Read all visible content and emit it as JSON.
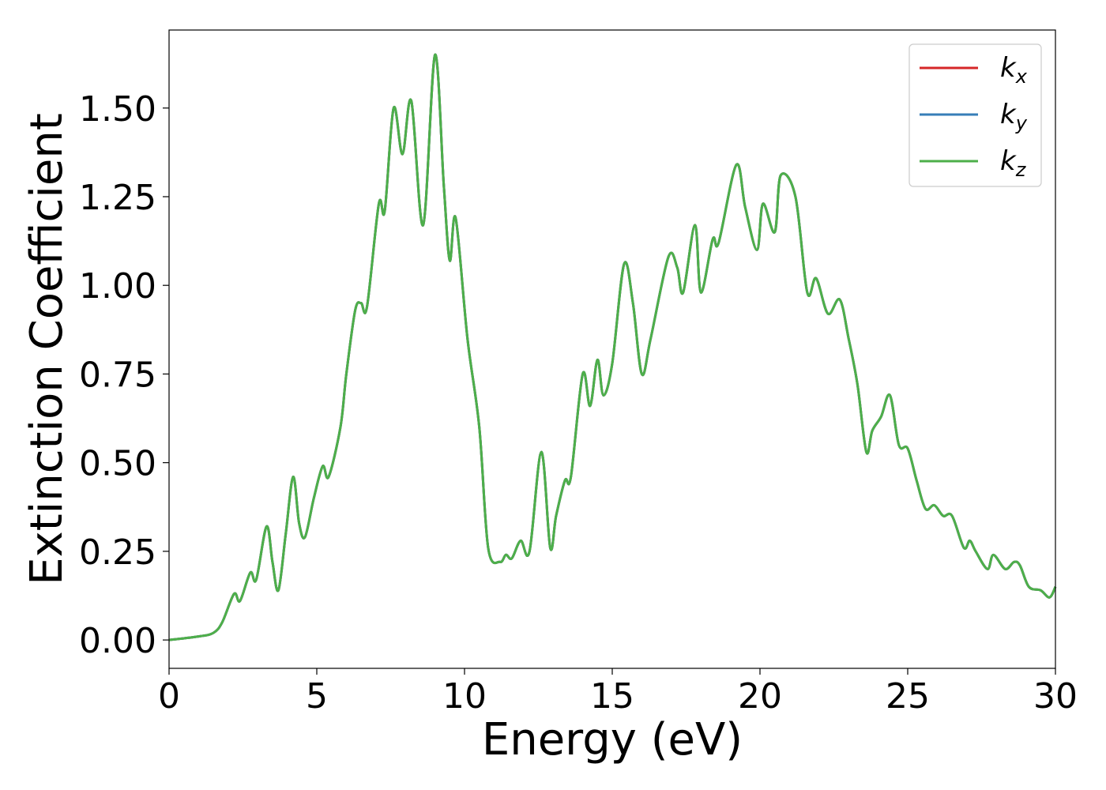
{
  "chart_data": {
    "type": "line",
    "title": "",
    "xlabel": "Energy (eV)",
    "ylabel": "Extinction Coefficient",
    "xlim": [
      0,
      30
    ],
    "ylim": [
      -0.08,
      1.72
    ],
    "xticks": [
      0,
      5,
      10,
      15,
      20,
      25,
      30
    ],
    "xtick_labels": [
      "0",
      "5",
      "10",
      "15",
      "20",
      "25",
      "30"
    ],
    "yticks": [
      0.0,
      0.25,
      0.5,
      0.75,
      1.0,
      1.25,
      1.5
    ],
    "ytick_labels": [
      "0.00",
      "0.25",
      "0.50",
      "0.75",
      "1.00",
      "1.25",
      "1.50"
    ],
    "grid": false,
    "legend_position": "top-right",
    "series": [
      {
        "name": "k_x",
        "legend_base": "k",
        "legend_sub": "x",
        "color": "#d62728",
        "x": [
          0,
          1.0,
          1.5,
          1.8,
          2.2,
          2.4,
          2.75,
          2.95,
          3.3,
          3.5,
          3.7,
          3.95,
          4.2,
          4.4,
          4.6,
          4.9,
          5.2,
          5.4,
          5.8,
          6.0,
          6.3,
          6.5,
          6.7,
          7.1,
          7.3,
          7.6,
          7.9,
          8.2,
          8.6,
          9.0,
          9.3,
          9.5,
          9.7,
          10.1,
          10.5,
          10.8,
          11.2,
          11.4,
          11.6,
          11.9,
          12.2,
          12.6,
          12.9,
          13.1,
          13.4,
          13.6,
          14.0,
          14.25,
          14.5,
          14.7,
          15.0,
          15.4,
          15.7,
          16.0,
          16.3,
          16.9,
          17.2,
          17.4,
          17.8,
          18.0,
          18.4,
          18.6,
          19.2,
          19.5,
          19.9,
          20.1,
          20.5,
          20.7,
          21.2,
          21.6,
          21.9,
          22.3,
          22.7,
          23.0,
          23.3,
          23.6,
          23.8,
          24.1,
          24.4,
          24.7,
          25.0,
          25.3,
          25.6,
          25.9,
          26.2,
          26.5,
          26.9,
          27.1,
          27.3,
          27.7,
          27.9,
          28.3,
          28.6,
          28.8,
          29.1,
          29.5,
          29.8,
          30.0
        ],
        "y": [
          0.0,
          0.01,
          0.02,
          0.05,
          0.13,
          0.11,
          0.19,
          0.17,
          0.32,
          0.22,
          0.14,
          0.3,
          0.46,
          0.33,
          0.29,
          0.4,
          0.49,
          0.46,
          0.6,
          0.75,
          0.93,
          0.95,
          0.94,
          1.23,
          1.21,
          1.5,
          1.37,
          1.52,
          1.17,
          1.65,
          1.28,
          1.07,
          1.19,
          0.85,
          0.6,
          0.26,
          0.22,
          0.24,
          0.23,
          0.28,
          0.25,
          0.53,
          0.26,
          0.35,
          0.45,
          0.46,
          0.75,
          0.66,
          0.79,
          0.69,
          0.78,
          1.06,
          0.95,
          0.75,
          0.85,
          1.08,
          1.05,
          0.98,
          1.17,
          0.98,
          1.13,
          1.12,
          1.34,
          1.22,
          1.1,
          1.23,
          1.15,
          1.31,
          1.25,
          0.98,
          1.02,
          0.92,
          0.96,
          0.85,
          0.72,
          0.53,
          0.59,
          0.63,
          0.69,
          0.55,
          0.54,
          0.45,
          0.37,
          0.38,
          0.35,
          0.35,
          0.26,
          0.28,
          0.25,
          0.2,
          0.24,
          0.2,
          0.22,
          0.21,
          0.15,
          0.14,
          0.12,
          0.15
        ]
      },
      {
        "name": "k_y",
        "legend_base": "k",
        "legend_sub": "y",
        "color": "#377eb8",
        "x": [
          0,
          1.0,
          1.5,
          1.8,
          2.2,
          2.4,
          2.75,
          2.95,
          3.3,
          3.5,
          3.7,
          3.95,
          4.2,
          4.4,
          4.6,
          4.9,
          5.2,
          5.4,
          5.8,
          6.0,
          6.3,
          6.5,
          6.7,
          7.1,
          7.3,
          7.6,
          7.9,
          8.2,
          8.6,
          9.0,
          9.3,
          9.5,
          9.7,
          10.1,
          10.5,
          10.8,
          11.2,
          11.4,
          11.6,
          11.9,
          12.2,
          12.6,
          12.9,
          13.1,
          13.4,
          13.6,
          14.0,
          14.25,
          14.5,
          14.7,
          15.0,
          15.4,
          15.7,
          16.0,
          16.3,
          16.9,
          17.2,
          17.4,
          17.8,
          18.0,
          18.4,
          18.6,
          19.2,
          19.5,
          19.9,
          20.1,
          20.5,
          20.7,
          21.2,
          21.6,
          21.9,
          22.3,
          22.7,
          23.0,
          23.3,
          23.6,
          23.8,
          24.1,
          24.4,
          24.7,
          25.0,
          25.3,
          25.6,
          25.9,
          26.2,
          26.5,
          26.9,
          27.1,
          27.3,
          27.7,
          27.9,
          28.3,
          28.6,
          28.8,
          29.1,
          29.5,
          29.8,
          30.0
        ],
        "y": [
          0.0,
          0.01,
          0.02,
          0.05,
          0.13,
          0.11,
          0.19,
          0.17,
          0.32,
          0.22,
          0.14,
          0.3,
          0.46,
          0.33,
          0.29,
          0.4,
          0.49,
          0.46,
          0.6,
          0.75,
          0.93,
          0.95,
          0.94,
          1.23,
          1.21,
          1.5,
          1.37,
          1.52,
          1.17,
          1.65,
          1.28,
          1.07,
          1.19,
          0.85,
          0.6,
          0.26,
          0.22,
          0.24,
          0.23,
          0.28,
          0.25,
          0.53,
          0.26,
          0.35,
          0.45,
          0.46,
          0.75,
          0.66,
          0.79,
          0.69,
          0.78,
          1.06,
          0.95,
          0.75,
          0.85,
          1.08,
          1.05,
          0.98,
          1.17,
          0.98,
          1.13,
          1.12,
          1.34,
          1.22,
          1.1,
          1.23,
          1.15,
          1.31,
          1.25,
          0.98,
          1.02,
          0.92,
          0.96,
          0.85,
          0.72,
          0.53,
          0.59,
          0.63,
          0.69,
          0.55,
          0.54,
          0.45,
          0.37,
          0.38,
          0.35,
          0.35,
          0.26,
          0.28,
          0.25,
          0.2,
          0.24,
          0.2,
          0.22,
          0.21,
          0.15,
          0.14,
          0.12,
          0.15
        ]
      },
      {
        "name": "k_z",
        "legend_base": "k",
        "legend_sub": "z",
        "color": "#4daf4a",
        "x": [
          0,
          1.0,
          1.5,
          1.8,
          2.2,
          2.4,
          2.75,
          2.95,
          3.3,
          3.5,
          3.7,
          3.95,
          4.2,
          4.4,
          4.6,
          4.9,
          5.2,
          5.4,
          5.8,
          6.0,
          6.3,
          6.5,
          6.7,
          7.1,
          7.3,
          7.6,
          7.9,
          8.2,
          8.6,
          9.0,
          9.3,
          9.5,
          9.7,
          10.1,
          10.5,
          10.8,
          11.2,
          11.4,
          11.6,
          11.9,
          12.2,
          12.6,
          12.9,
          13.1,
          13.4,
          13.6,
          14.0,
          14.25,
          14.5,
          14.7,
          15.0,
          15.4,
          15.7,
          16.0,
          16.3,
          16.9,
          17.2,
          17.4,
          17.8,
          18.0,
          18.4,
          18.6,
          19.2,
          19.5,
          19.9,
          20.1,
          20.5,
          20.7,
          21.2,
          21.6,
          21.9,
          22.3,
          22.7,
          23.0,
          23.3,
          23.6,
          23.8,
          24.1,
          24.4,
          24.7,
          25.0,
          25.3,
          25.6,
          25.9,
          26.2,
          26.5,
          26.9,
          27.1,
          27.3,
          27.7,
          27.9,
          28.3,
          28.6,
          28.8,
          29.1,
          29.5,
          29.8,
          30.0
        ],
        "y": [
          0.0,
          0.01,
          0.02,
          0.05,
          0.13,
          0.11,
          0.19,
          0.17,
          0.32,
          0.22,
          0.14,
          0.3,
          0.46,
          0.33,
          0.29,
          0.4,
          0.49,
          0.46,
          0.6,
          0.75,
          0.93,
          0.95,
          0.94,
          1.23,
          1.21,
          1.5,
          1.37,
          1.52,
          1.17,
          1.65,
          1.28,
          1.07,
          1.19,
          0.85,
          0.6,
          0.26,
          0.22,
          0.24,
          0.23,
          0.28,
          0.25,
          0.53,
          0.26,
          0.35,
          0.45,
          0.46,
          0.75,
          0.66,
          0.79,
          0.69,
          0.78,
          1.06,
          0.95,
          0.75,
          0.85,
          1.08,
          1.05,
          0.98,
          1.17,
          0.98,
          1.13,
          1.12,
          1.34,
          1.22,
          1.1,
          1.23,
          1.15,
          1.31,
          1.25,
          0.98,
          1.02,
          0.92,
          0.96,
          0.85,
          0.72,
          0.53,
          0.59,
          0.63,
          0.69,
          0.55,
          0.54,
          0.45,
          0.37,
          0.38,
          0.35,
          0.35,
          0.26,
          0.28,
          0.25,
          0.2,
          0.24,
          0.2,
          0.22,
          0.21,
          0.15,
          0.14,
          0.12,
          0.15
        ]
      }
    ]
  }
}
